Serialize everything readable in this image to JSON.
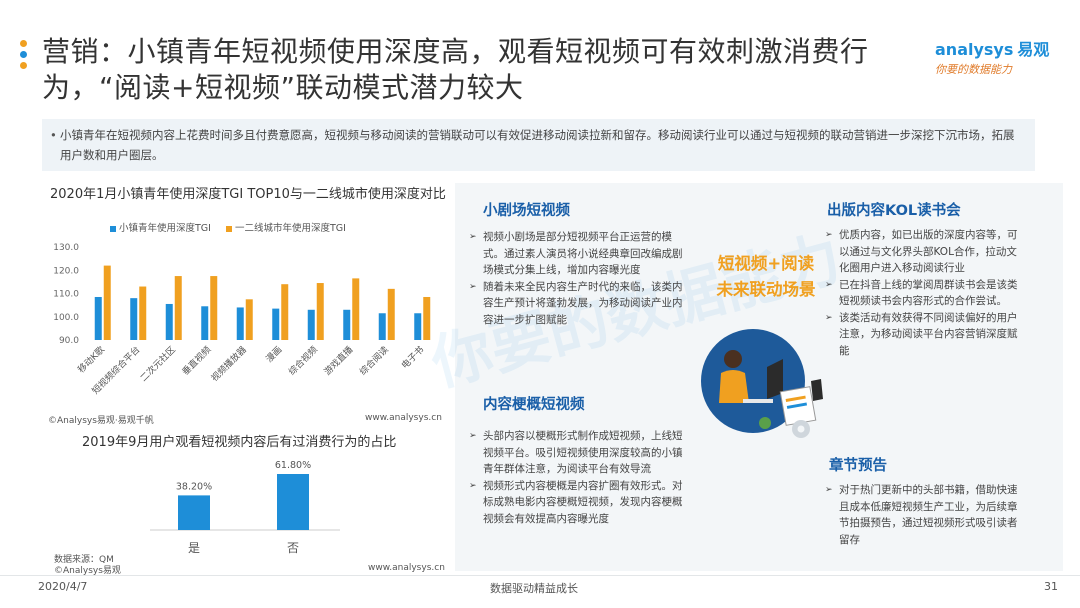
{
  "header": {
    "title": "营销：小镇青年短视频使用深度高，观看短视频可有效刺激消费行为，“阅读+短视频”联动模式潜力较大",
    "logo_brand": "analysys",
    "logo_brand_cn": "易观",
    "logo_slogan": "你要的数据能力"
  },
  "summary": "小镇青年在短视频内容上花费时间多且付费意愿高，短视频与移动阅读的营销联动可以有效促进移动阅读拉新和留存。移动阅读行业可以通过与短视频的联动营销进一步深挖下沉市场，拓展用户数和用户圈层。",
  "chart1_footer": {
    "source": "©Analysys易观·易观千帆",
    "site": "www.analysys.cn"
  },
  "chart2_footer": {
    "data_source": "数据来源：QM",
    "source": "©Analysys易观",
    "site": "www.analysys.cn"
  },
  "chart_data": [
    {
      "type": "bar",
      "title": "2020年1月小镇青年使用深度TGI TOP10与一二线城市使用深度对比",
      "categories": [
        "移动K歌",
        "短视频综合平台",
        "二次元社区",
        "垂直视频",
        "视频播放器",
        "漫画",
        "综合视频",
        "游戏直播",
        "综合阅读",
        "电子书"
      ],
      "series": [
        {
          "name": "小镇青年使用深度TGI",
          "color": "#1e8ed8",
          "values": [
            108.5,
            108,
            105.5,
            104.5,
            104,
            103.5,
            103,
            103,
            101.5,
            101.5
          ]
        },
        {
          "name": "一二线城市年使用深度TGI",
          "color": "#f0a020",
          "values": [
            122,
            113,
            117.5,
            117.5,
            107.5,
            114,
            114.5,
            116.5,
            112,
            108.5
          ]
        }
      ],
      "ylim": [
        90,
        130
      ],
      "yticks": [
        "130.0",
        "120.0",
        "110.0",
        "100.0",
        "90.0"
      ],
      "legend_position": "top"
    },
    {
      "type": "bar",
      "title": "2019年9月用户观看短视频内容后有过消费行为的占比",
      "categories": [
        "是",
        "否"
      ],
      "values": [
        38.2,
        61.8
      ],
      "labels": [
        "38.20%",
        "61.80%"
      ],
      "color": "#1e8ed8"
    }
  ],
  "panel": {
    "watermark": "你要的数据能力",
    "center_label_1": "短视频+阅读",
    "center_label_2": "未来联动场景",
    "sections": [
      {
        "title": "小剧场短视频",
        "items": [
          "视频小剧场是部分短视频平台正运营的模式。通过素人演员将小说经典章回改编成剧场模式分集上线，增加内容曝光度",
          "随着未来全民内容生产时代的来临，该类内容生产预计将蓬勃发展，为移动阅读产业内容进一步扩图赋能"
        ]
      },
      {
        "title": "内容梗概短视频",
        "items": [
          "头部内容以梗概形式制作成短视频，上线短视频平台。吸引短视频使用深度较高的小镇青年群体注意，为阅读平台有效导流",
          "视频形式内容梗概是内容扩圈有效形式。对标成熟电影内容梗概短视频，发现内容梗概视频会有效提高内容曝光度"
        ]
      },
      {
        "title": "出版内容KOL读书会",
        "items": [
          "优质内容，如已出版的深度内容等，可以通过与文化界头部KOL合作，拉动文化圈用户进入移动阅读行业",
          "已在抖音上线的掌阅周群读书会是该类短视频读书会内容形式的合作尝试。",
          "该类活动有效获得不同阅读偏好的用户注意，为移动阅读平台内容营销深度赋能"
        ]
      },
      {
        "title": "章节预告",
        "items": [
          "对于热门更新中的头部书籍，借助快速且成本低廉短视频生产工业，为后续章节拍摄预告，通过短视频形式吸引读者留存"
        ]
      }
    ]
  },
  "footer": {
    "date": "2020/4/7",
    "tagline": "数据驱动精益成长",
    "page": "31"
  },
  "accent_colors": {
    "blue": "#1e8ed8",
    "orange": "#f0a020",
    "dark_blue": "#1a5fa8"
  }
}
